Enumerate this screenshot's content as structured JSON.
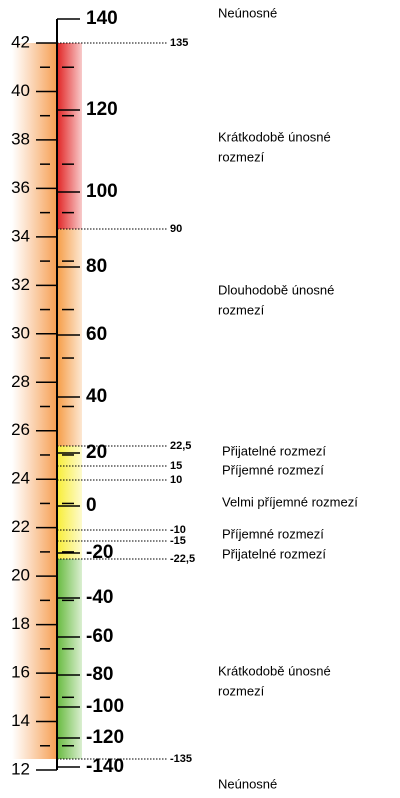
{
  "left_axis": {
    "ticks": [
      12,
      14,
      16,
      18,
      20,
      22,
      24,
      26,
      28,
      30,
      32,
      34,
      36,
      38,
      40,
      42
    ]
  },
  "right_axis": {
    "ticks": [
      140,
      120,
      100,
      80,
      60,
      40,
      20,
      0,
      -20,
      -40,
      -60,
      -80,
      -100,
      -120,
      -140
    ]
  },
  "thresholds": [
    "135",
    "90",
    "22,5",
    "15",
    "10",
    "-10",
    "-15",
    "-22,5",
    "-135"
  ],
  "zones": [
    [
      "Neúnosné"
    ],
    [
      "Krátkodobě únosné",
      "rozmezí"
    ],
    [
      "Dlouhodobě únosné",
      "rozmezí"
    ],
    [
      "Přijatelné rozmezí"
    ],
    [
      "Příjemné rozmezí"
    ],
    [
      "Velmi příjemné rozmezí"
    ],
    [
      "Příjemné rozmezí"
    ],
    [
      "Přijatelné rozmezí"
    ],
    [
      "Krátkodobě únosné",
      "rozmezí"
    ],
    [
      "Neúnosné"
    ]
  ]
}
